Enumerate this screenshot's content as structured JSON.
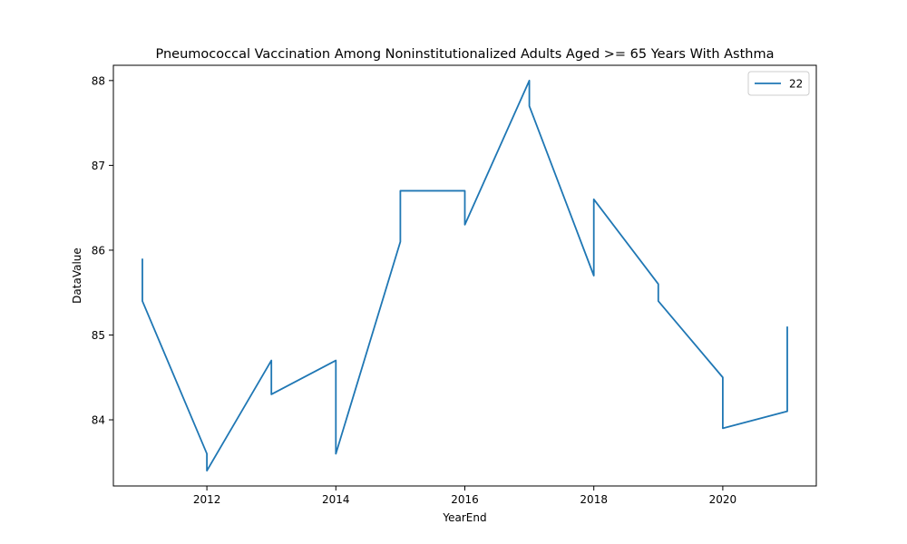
{
  "chart_data": {
    "type": "line",
    "title": "Pneumococcal Vaccination Among Noninstitutionalized Adults Aged >= 65 Years With Asthma",
    "xlabel": "YearEnd",
    "ylabel": "DataValue",
    "xlim": [
      2010.55,
      2021.45
    ],
    "ylim": [
      83.22,
      88.18
    ],
    "xticks": [
      2012,
      2014,
      2016,
      2018,
      2020
    ],
    "yticks": [
      84,
      85,
      86,
      87,
      88
    ],
    "grid": false,
    "legend_position": "top-right",
    "series": [
      {
        "name": "22",
        "color": "#1f77b4",
        "x": [
          2011,
          2011,
          2012,
          2012,
          2013,
          2013,
          2014,
          2014,
          2015,
          2015,
          2016,
          2016,
          2017,
          2017,
          2018,
          2018,
          2019,
          2019,
          2020,
          2020,
          2021,
          2021
        ],
        "y": [
          85.9,
          85.4,
          83.6,
          83.4,
          84.7,
          84.3,
          84.7,
          83.6,
          86.1,
          86.7,
          86.7,
          86.3,
          88.0,
          87.7,
          85.7,
          86.6,
          85.6,
          85.4,
          84.5,
          83.9,
          84.1,
          85.1
        ]
      }
    ]
  }
}
